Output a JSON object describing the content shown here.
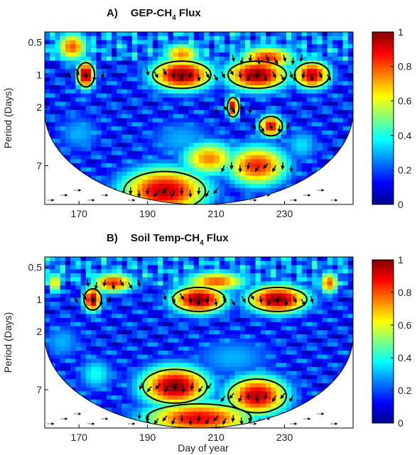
{
  "chart_data": [
    {
      "type": "heatmap",
      "panel_letter": "A)",
      "title_main": "GEP-CH",
      "title_sub": "4",
      "title_tail": " Flux",
      "xlabel": "",
      "ylabel": "Period (Days)",
      "x_ticks": [
        170,
        190,
        210,
        230
      ],
      "y_ticks": [
        {
          "label": "0.5",
          "period": 0.5
        },
        {
          "label": "1",
          "period": 1
        },
        {
          "label": "2",
          "period": 2
        },
        {
          "label": "7",
          "period": 7
        }
      ],
      "xlim": [
        160,
        250
      ],
      "ylim": [
        0.4,
        16
      ],
      "y_scale": "log2 (reversed)",
      "colorbar": {
        "min": 0,
        "max": 1,
        "ticks": [
          "0",
          "0.2",
          "0.4",
          "0.6",
          "0.8",
          "1"
        ]
      },
      "blobs": [
        {
          "day": 172,
          "period": 1.0,
          "dx": 3,
          "dl": 0.25,
          "v": 1.0
        },
        {
          "day": 200,
          "period": 1.0,
          "dx": 10,
          "dl": 0.28,
          "v": 1.0
        },
        {
          "day": 222,
          "period": 1.0,
          "dx": 10,
          "dl": 0.28,
          "v": 1.0
        },
        {
          "day": 238,
          "period": 1.0,
          "dx": 6,
          "dl": 0.25,
          "v": 0.95
        },
        {
          "day": 225,
          "period": 0.7,
          "dx": 9,
          "dl": 0.2,
          "v": 0.85
        },
        {
          "day": 200,
          "period": 0.65,
          "dx": 6,
          "dl": 0.2,
          "v": 0.75
        },
        {
          "day": 168,
          "period": 0.55,
          "dx": 5,
          "dl": 0.25,
          "v": 0.8
        },
        {
          "day": 215,
          "period": 2.0,
          "dx": 2,
          "dl": 0.2,
          "v": 0.95
        },
        {
          "day": 226,
          "period": 3.0,
          "dx": 4,
          "dl": 0.2,
          "v": 0.9
        },
        {
          "day": 208,
          "period": 6.0,
          "dx": 9,
          "dl": 0.3,
          "v": 0.75
        },
        {
          "day": 222,
          "period": 7.0,
          "dx": 10,
          "dl": 0.35,
          "v": 0.85
        },
        {
          "day": 195,
          "period": 12.0,
          "dx": 14,
          "dl": 0.4,
          "v": 0.95
        },
        {
          "day": 170,
          "period": 3.5,
          "dx": 8,
          "dl": 0.35,
          "v": 0.3
        },
        {
          "day": 200,
          "period": 4.0,
          "dx": 12,
          "dl": 0.4,
          "v": 0.3
        },
        {
          "day": 235,
          "period": 4.5,
          "dx": 6,
          "dl": 0.3,
          "v": 0.35
        }
      ]
    },
    {
      "type": "heatmap",
      "panel_letter": "B)",
      "title_main": "Soil Temp-CH",
      "title_sub": "4",
      "title_tail": " Flux",
      "xlabel": "Day of year",
      "ylabel": "Period (Days)",
      "x_ticks": [
        170,
        190,
        210,
        230
      ],
      "y_ticks": [
        {
          "label": "0.5",
          "period": 0.5
        },
        {
          "label": "1",
          "period": 1
        },
        {
          "label": "2",
          "period": 2
        },
        {
          "label": "7",
          "period": 7
        }
      ],
      "xlim": [
        160,
        250
      ],
      "ylim": [
        0.4,
        16
      ],
      "y_scale": "log2 (reversed)",
      "colorbar": {
        "min": 0,
        "max": 1,
        "ticks": [
          "0",
          "0.2",
          "0.4",
          "0.6",
          "0.8",
          "1"
        ]
      },
      "blobs": [
        {
          "day": 174,
          "period": 1.0,
          "dx": 3,
          "dl": 0.22,
          "v": 1.0
        },
        {
          "day": 205,
          "period": 1.0,
          "dx": 9,
          "dl": 0.25,
          "v": 1.0
        },
        {
          "day": 228,
          "period": 1.0,
          "dx": 10,
          "dl": 0.25,
          "v": 1.0
        },
        {
          "day": 180,
          "period": 0.7,
          "dx": 7,
          "dl": 0.18,
          "v": 0.85
        },
        {
          "day": 210,
          "period": 0.68,
          "dx": 10,
          "dl": 0.18,
          "v": 0.8
        },
        {
          "day": 243,
          "period": 0.7,
          "dx": 3,
          "dl": 0.2,
          "v": 0.8
        },
        {
          "day": 163,
          "period": 0.7,
          "dx": 2,
          "dl": 0.2,
          "v": 0.7
        },
        {
          "day": 198,
          "period": 6.5,
          "dx": 11,
          "dl": 0.35,
          "v": 1.0
        },
        {
          "day": 222,
          "period": 8.0,
          "dx": 10,
          "dl": 0.35,
          "v": 0.95
        },
        {
          "day": 205,
          "period": 13.0,
          "dx": 18,
          "dl": 0.3,
          "v": 0.9
        },
        {
          "day": 165,
          "period": 2.5,
          "dx": 7,
          "dl": 0.35,
          "v": 0.3
        },
        {
          "day": 215,
          "period": 3.5,
          "dx": 15,
          "dl": 0.4,
          "v": 0.3
        },
        {
          "day": 175,
          "period": 5.0,
          "dx": 6,
          "dl": 0.3,
          "v": 0.4
        }
      ]
    }
  ]
}
